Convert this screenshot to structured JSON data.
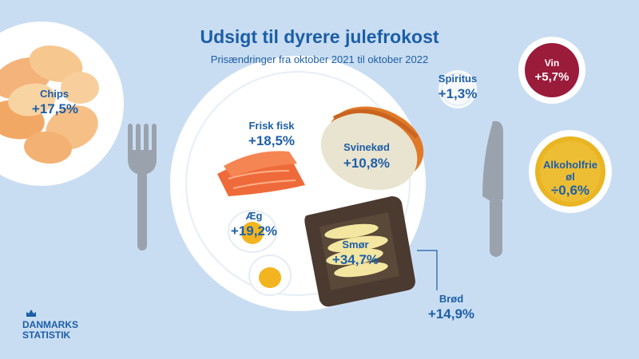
{
  "title": "Udsigt til dyrere julefrokost",
  "subtitle": "Prisændringer fra oktober 2021 til oktober 2022",
  "items": {
    "chips": {
      "label": "Chips",
      "value": "+17,5%"
    },
    "frisk_fisk": {
      "label": "Frisk fisk",
      "value": "+18,5%"
    },
    "svinekod": {
      "label": "Svinekød",
      "value": "+10,8%"
    },
    "aeg": {
      "label": "Æg",
      "value": "+19,2%"
    },
    "smor": {
      "label": "Smør",
      "value": "+34,7%"
    },
    "brod": {
      "label": "Brød",
      "value": "+14,9%"
    },
    "spiritus": {
      "label": "Spiritus",
      "value": "+1,3%"
    },
    "vin": {
      "label": "Vin",
      "value": "+5,7%"
    },
    "alkoholfrie_ol": {
      "label_line1": "Alkoholfrie",
      "label_line2": "øl",
      "value": "÷0,6%"
    }
  },
  "logo": {
    "line1": "DANMARKS",
    "line2": "STATISTIK"
  },
  "colors": {
    "background": "#c9ddf2",
    "text": "#1c5ea6",
    "plate": "#ffffff",
    "wine": "#9b1b3a",
    "beer": "#e9b523",
    "salmon": "#ef6a3a",
    "bread": "#4a3a30",
    "butter": "#f3e6a0",
    "cutlery": "#9aa3ad"
  }
}
